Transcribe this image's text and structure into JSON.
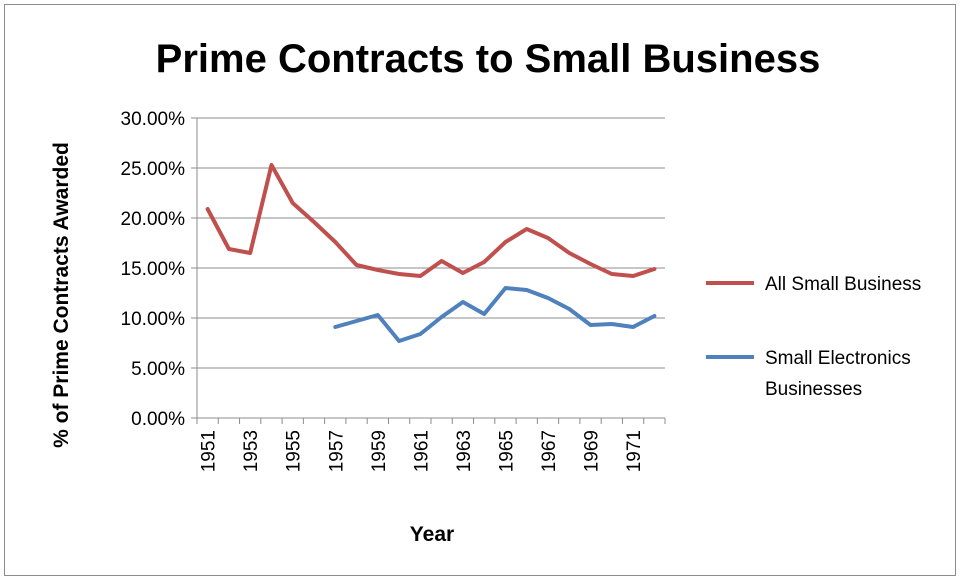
{
  "chart_data": {
    "type": "line",
    "title": "Prime Contracts to Small Business",
    "xlabel": "Year",
    "ylabel": "% of Prime Contracts Awarded",
    "ylim": [
      0,
      30
    ],
    "y_ticks": [
      "0.00%",
      "5.00%",
      "10.00%",
      "15.00%",
      "20.00%",
      "25.00%",
      "30.00%"
    ],
    "x_tick_labels": [
      "1951",
      "1953",
      "1955",
      "1957",
      "1959",
      "1961",
      "1963",
      "1965",
      "1967",
      "1969",
      "1971"
    ],
    "x": [
      1951,
      1952,
      1953,
      1954,
      1955,
      1956,
      1957,
      1958,
      1959,
      1960,
      1961,
      1962,
      1963,
      1964,
      1965,
      1966,
      1967,
      1968,
      1969,
      1970,
      1971,
      1972
    ],
    "grid": true,
    "legend_position": "right",
    "series": [
      {
        "name": "All Small Business",
        "color": "#c0504d",
        "values": [
          20.9,
          16.9,
          16.5,
          25.3,
          21.5,
          19.6,
          17.6,
          15.3,
          14.8,
          14.4,
          14.2,
          15.7,
          14.5,
          15.6,
          17.6,
          18.9,
          18.0,
          16.5,
          15.4,
          14.4,
          14.2,
          14.9
        ]
      },
      {
        "name": "Small Electronics Businesses",
        "color": "#4f81bd",
        "values": [
          null,
          null,
          null,
          null,
          null,
          null,
          9.1,
          9.7,
          10.3,
          7.7,
          8.4,
          10.1,
          11.6,
          10.4,
          13.0,
          12.8,
          12.0,
          10.9,
          9.3,
          9.4,
          9.1,
          10.2
        ]
      }
    ]
  }
}
